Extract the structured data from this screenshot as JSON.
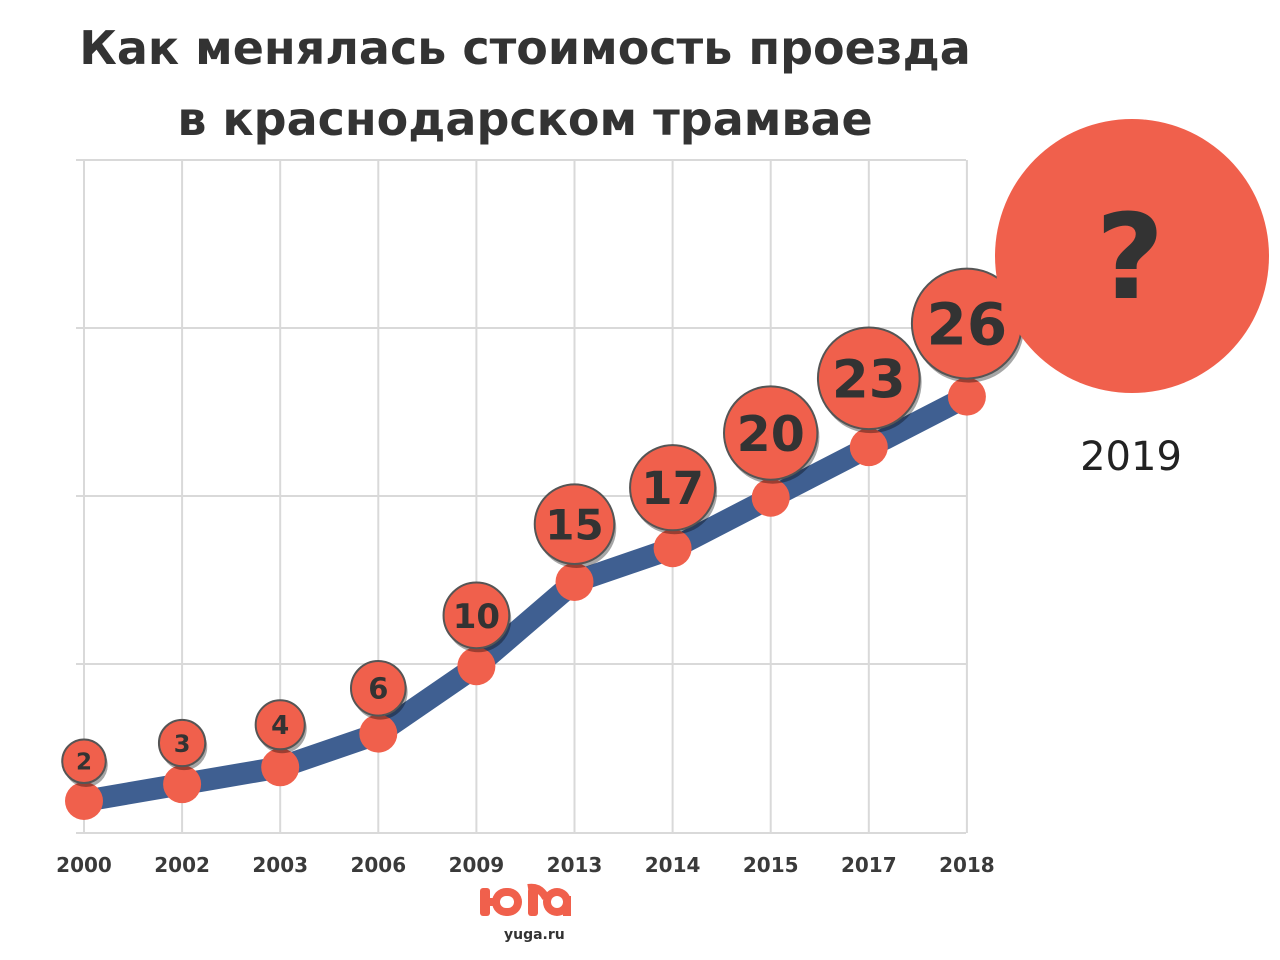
{
  "chart_data": {
    "type": "line",
    "title_line1": "Как менялась стоимость проезда",
    "title_line2": "в краснодарском трамвае",
    "categories": [
      "2000",
      "2002",
      "2003",
      "2006",
      "2009",
      "2013",
      "2014",
      "2015",
      "2017",
      "2018"
    ],
    "values": [
      2,
      3,
      4,
      6,
      10,
      15,
      17,
      20,
      23,
      26
    ],
    "value_labels": [
      "2",
      "3",
      "4",
      "6",
      "10",
      "15",
      "17",
      "20",
      "23",
      "26"
    ],
    "xlabel": "",
    "ylabel": "",
    "ylim": [
      1,
      30
    ],
    "grid": true,
    "future": {
      "label": "?",
      "year": "2019"
    }
  },
  "colors": {
    "line": "#3f5f91",
    "marker": "#f0604c",
    "grid": "#d9d9d9",
    "text": "#333333"
  },
  "branding": {
    "logo_text": "ЮГА",
    "logo_url": "yuga.ru"
  }
}
